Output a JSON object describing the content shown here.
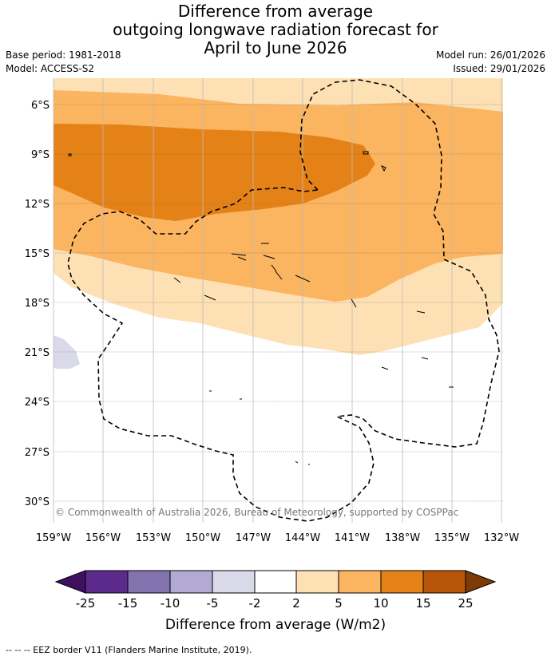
{
  "title": {
    "line1": "Difference from average",
    "line2": "outgoing longwave radiation forecast for",
    "line3": "April to June 2026"
  },
  "meta": {
    "base_period": "Base period: 1981-2018",
    "model": "Model: ACCESS-S2",
    "model_run": "Model run: 26/01/2026",
    "issued": "Issued: 29/01/2026"
  },
  "map": {
    "lat_ticks": [
      "6°S",
      "9°S",
      "12°S",
      "15°S",
      "18°S",
      "21°S",
      "24°S",
      "27°S",
      "30°S"
    ],
    "lon_ticks": [
      "159°W",
      "156°W",
      "153°W",
      "150°W",
      "147°W",
      "144°W",
      "141°W",
      "138°W",
      "135°W",
      "132°W"
    ],
    "copyright": "© Commonwealth of Australia 2026, Bureau of Meteorology, supported by COSPPac"
  },
  "colorbar": {
    "ticks": [
      "-25",
      "-15",
      "-10",
      "-5",
      "-2",
      "2",
      "5",
      "10",
      "15",
      "25"
    ],
    "colors": [
      "#3f1060",
      "#5b2a8a",
      "#8272ad",
      "#b2aad2",
      "#d9d9ea",
      "#ffffff",
      "#fde0b4",
      "#fbb45f",
      "#e48217",
      "#b85509",
      "#7c3b07"
    ],
    "label": "Difference from average (W/m2)"
  },
  "footer": "--  --  -- EEZ border V11 (Flanders Marine Institute, 2019)."
}
